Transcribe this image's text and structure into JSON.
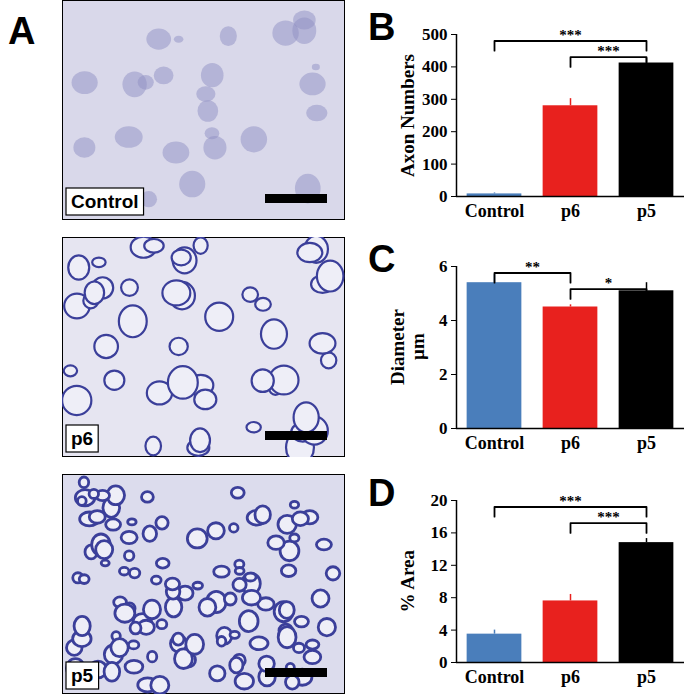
{
  "panel_A": {
    "panel": "A",
    "images": [
      {
        "label": "Control"
      },
      {
        "label": "p6"
      },
      {
        "label": "p5"
      }
    ]
  },
  "chart_data": [
    {
      "type": "bar",
      "panel": "B",
      "ylabel": [
        "Axon Numbers"
      ],
      "categories": [
        "Control",
        "p6",
        "p5"
      ],
      "values": [
        8,
        280,
        412
      ],
      "errors": [
        3,
        22,
        15
      ],
      "colors": [
        "#4a7ebb",
        "#e8211e",
        "#000000"
      ],
      "ylim": [
        0,
        500
      ],
      "yticks": [
        0,
        100,
        200,
        300,
        400,
        500
      ],
      "significance": [
        {
          "from": "Control",
          "to": "p5",
          "label": "***"
        },
        {
          "from": "p6",
          "to": "p5",
          "label": "***"
        }
      ]
    },
    {
      "type": "bar",
      "panel": "C",
      "ylabel": [
        "Diameter",
        "µm"
      ],
      "categories": [
        "Control",
        "p6",
        "p5"
      ],
      "values": [
        5.4,
        4.5,
        5.1
      ],
      "errors": [
        0.3,
        0.08,
        0.3
      ],
      "colors": [
        "#4a7ebb",
        "#e8211e",
        "#000000"
      ],
      "ylim": [
        0,
        6
      ],
      "yticks": [
        0,
        2,
        4,
        6
      ],
      "significance": [
        {
          "from": "Control",
          "to": "p6",
          "label": "**"
        },
        {
          "from": "p6",
          "to": "p5",
          "label": "*"
        }
      ]
    },
    {
      "type": "bar",
      "panel": "D",
      "ylabel": [
        "% Area"
      ],
      "categories": [
        "Control",
        "p6",
        "p5"
      ],
      "values": [
        3.5,
        7.6,
        14.8
      ],
      "errors": [
        0.5,
        0.8,
        0.5
      ],
      "colors": [
        "#4a7ebb",
        "#e8211e",
        "#000000"
      ],
      "ylim": [
        0,
        20
      ],
      "yticks": [
        0,
        4,
        8,
        12,
        16,
        20
      ],
      "significance": [
        {
          "from": "Control",
          "to": "p5",
          "label": "***"
        },
        {
          "from": "p6",
          "to": "p5",
          "label": "***"
        }
      ]
    }
  ]
}
